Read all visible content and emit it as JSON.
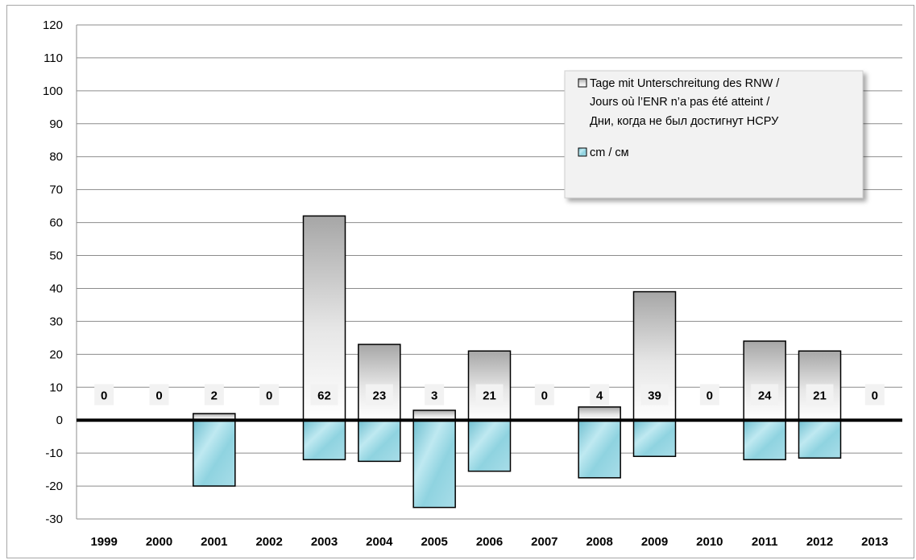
{
  "chart_data": {
    "type": "bar",
    "categories": [
      "1999",
      "2000",
      "2001",
      "2002",
      "2003",
      "2004",
      "2005",
      "2006",
      "2007",
      "2008",
      "2009",
      "2010",
      "2011",
      "2012",
      "2013"
    ],
    "series": [
      {
        "name": "Tage mit Unterschreitung des RNW / Jours où l’ENR n’a pas été atteint / Дни, когда не был достигнут НСРУ",
        "values": [
          0,
          0,
          2,
          0,
          62,
          23,
          3,
          21,
          0,
          4,
          39,
          0,
          24,
          21,
          0
        ],
        "data_labels": [
          "0",
          "0",
          "2",
          "0",
          "62",
          "23",
          "3",
          "21",
          "0",
          "4",
          "39",
          "0",
          "24",
          "21",
          "0"
        ],
        "color": "#bfbfbf"
      },
      {
        "name": "cm  / см",
        "values": [
          0,
          0,
          -20,
          0,
          -12,
          -12.5,
          -26.5,
          -15.5,
          0,
          -17.5,
          -11,
          0,
          -12,
          -11.5,
          0
        ],
        "color": "#8fd3e0"
      }
    ],
    "ylim": [
      -30,
      120
    ],
    "yticks": [
      "-30",
      "-20",
      "-10",
      "0",
      "10",
      "20",
      "30",
      "40",
      "50",
      "60",
      "70",
      "80",
      "90",
      "100",
      "110",
      "120"
    ],
    "grid": true,
    "legend_position": "top-right",
    "legend_lines": [
      "Tage mit Unterschreitung des RNW /",
      "Jours où l’ENR n’a pas été atteint /",
      "Дни, когда не был достигнут НСРУ",
      "cm  / см"
    ]
  }
}
